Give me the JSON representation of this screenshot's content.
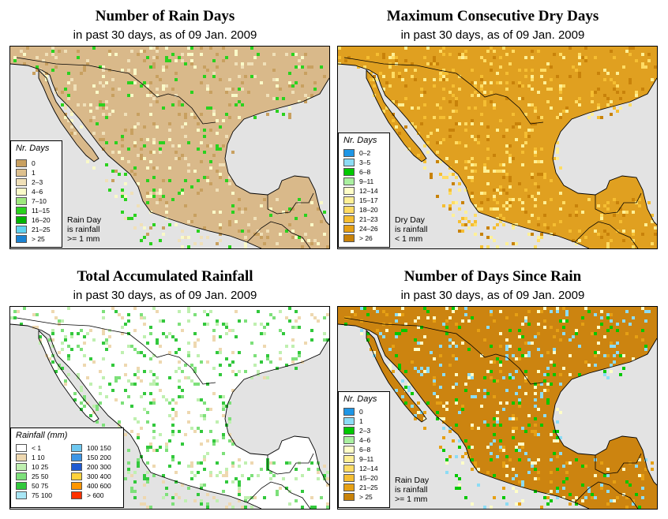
{
  "panels": [
    {
      "title": "Number of Rain Days",
      "subtitle": "in past 30 days, as of  09 Jan. 2009",
      "legend_title": "Nr. Days",
      "legend": [
        {
          "label": "0",
          "color": "#c8a060"
        },
        {
          "label": "1",
          "color": "#ddc08e"
        },
        {
          "label": "2–3",
          "color": "#f0e0b8"
        },
        {
          "label": "4–6",
          "color": "#fafac8"
        },
        {
          "label": "7–10",
          "color": "#9ee87e"
        },
        {
          "label": "11–15",
          "color": "#2ad21e"
        },
        {
          "label": "16–20",
          "color": "#00b400"
        },
        {
          "label": "21–25",
          "color": "#5fd2f0"
        },
        {
          "label": "> 25",
          "color": "#1a82d2"
        }
      ],
      "note": [
        "Rain Day",
        "is rainfall",
        ">= 1 mm"
      ]
    },
    {
      "title": "Maximum Consecutive Dry Days",
      "subtitle": "in past 30 days, as of  09 Jan. 2009",
      "legend_title": "Nr. Days",
      "legend": [
        {
          "label": "0–2",
          "color": "#1e96e6"
        },
        {
          "label": "3–5",
          "color": "#8cdcf5"
        },
        {
          "label": "6–8",
          "color": "#00c800"
        },
        {
          "label": "9–11",
          "color": "#aaf0a0"
        },
        {
          "label": "12–14",
          "color": "#ffffc8"
        },
        {
          "label": "15–17",
          "color": "#fff096"
        },
        {
          "label": "18–20",
          "color": "#ffdc64"
        },
        {
          "label": "21–23",
          "color": "#f5be32"
        },
        {
          "label": "24–26",
          "color": "#e6a014"
        },
        {
          "label": "> 26",
          "color": "#c8820a"
        }
      ],
      "note": [
        "Dry Day",
        "is rainfall",
        "< 1 mm"
      ]
    },
    {
      "title": "Total Accumulated Rainfall",
      "subtitle": "in past 30 days, as of  09 Jan. 2009",
      "legend_title": "Rainfall (mm)",
      "legend": [
        {
          "label": "< 1",
          "color": "#ffffff"
        },
        {
          "label": "1    10",
          "color": "#eed8b0"
        },
        {
          "label": "10    25",
          "color": "#bff0b0"
        },
        {
          "label": "25    50",
          "color": "#7de07a"
        },
        {
          "label": "50    75",
          "color": "#32c83c"
        },
        {
          "label": "75    100",
          "color": "#a8e6f5"
        },
        {
          "label": "100  150",
          "color": "#6ec8f0"
        },
        {
          "label": "150  200",
          "color": "#3c96e6"
        },
        {
          "label": "200  300",
          "color": "#1e5ad2"
        },
        {
          "label": "300  400",
          "color": "#ffd23c"
        },
        {
          "label": "400  600",
          "color": "#ff9600"
        },
        {
          "label": "> 600",
          "color": "#ff3200"
        }
      ],
      "note": []
    },
    {
      "title": "Number of Days Since Rain",
      "subtitle": "in past 30 days, as of  09 Jan. 2009",
      "legend_title": "Nr. Days",
      "legend": [
        {
          "label": "0",
          "color": "#1e96e6"
        },
        {
          "label": "1",
          "color": "#8cdcf5"
        },
        {
          "label": "2–3",
          "color": "#00c800"
        },
        {
          "label": "4–6",
          "color": "#aaf0a0"
        },
        {
          "label": "6–8",
          "color": "#ffffc8"
        },
        {
          "label": "9–11",
          "color": "#fff096"
        },
        {
          "label": "12–14",
          "color": "#ffdc64"
        },
        {
          "label": "15–20",
          "color": "#f5be32"
        },
        {
          "label": "21–25",
          "color": "#e6a014"
        },
        {
          "label": "> 25",
          "color": "#c8820a"
        }
      ],
      "note": [
        "Rain Day",
        "is rainfall",
        ">= 1 mm"
      ]
    }
  ]
}
